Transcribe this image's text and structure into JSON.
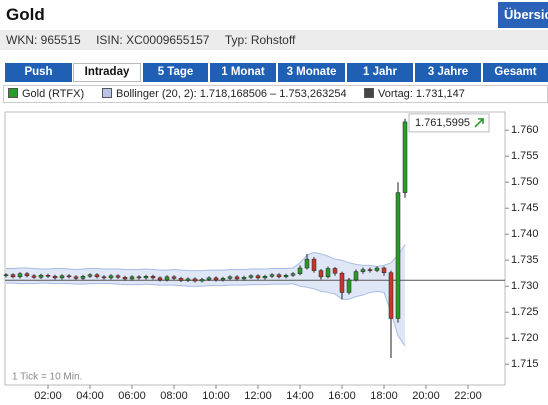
{
  "header": {
    "title": "Gold",
    "button": "Übersicht"
  },
  "info": [
    "WKN: 965515",
    "ISIN: XC0009655157",
    "Typ: Rohstoff"
  ],
  "tabs": [
    "Push",
    "Intraday",
    "5 Tage",
    "1 Monat",
    "3 Monate",
    "1 Jahr",
    "3 Jahre",
    "Gesamt"
  ],
  "active_tab": 1,
  "chart_data": {
    "type": "candlestick",
    "series_name": "Gold (RTFX)",
    "band_name": "Bollinger (20, 2): 1.718,168506 – 1.753,263254",
    "prev_close": {
      "value": 1.731147,
      "label": "Vortag: 1.731,147"
    },
    "last_label": "1.761,5995",
    "footnote": "1 Tick = 10 Min.",
    "up_color": "#2a9a2a",
    "down_color": "#c8352b",
    "band_color": "#dfe7f7",
    "xlim": [
      0,
      1440
    ],
    "xticks": [
      {
        "value": 120,
        "label": "02:00"
      },
      {
        "value": 240,
        "label": "04:00"
      },
      {
        "value": 360,
        "label": "06:00"
      },
      {
        "value": 480,
        "label": "08:00"
      },
      {
        "value": 600,
        "label": "10:00"
      },
      {
        "value": 720,
        "label": "12:00"
      },
      {
        "value": 840,
        "label": "14:00"
      },
      {
        "value": 960,
        "label": "16:00"
      },
      {
        "value": 1080,
        "label": "18:00"
      },
      {
        "value": 1200,
        "label": "20:00"
      },
      {
        "value": 1320,
        "label": "22:00"
      }
    ],
    "ylim": [
      1.711,
      1.7635
    ],
    "yticks": [
      {
        "value": 1.715,
        "label": "1.715"
      },
      {
        "value": 1.72,
        "label": "1.720"
      },
      {
        "value": 1.725,
        "label": "1.725"
      },
      {
        "value": 1.73,
        "label": "1.730"
      },
      {
        "value": 1.735,
        "label": "1.735"
      },
      {
        "value": 1.74,
        "label": "1.740"
      },
      {
        "value": 1.745,
        "label": "1.745"
      },
      {
        "value": 1.75,
        "label": "1.750"
      },
      {
        "value": 1.755,
        "label": "1.755"
      },
      {
        "value": 1.76,
        "label": "1.760"
      }
    ],
    "x": [
      0,
      20,
      40,
      60,
      80,
      100,
      120,
      140,
      160,
      180,
      200,
      220,
      240,
      260,
      280,
      300,
      320,
      340,
      360,
      380,
      400,
      420,
      440,
      460,
      480,
      500,
      520,
      540,
      560,
      580,
      600,
      620,
      640,
      660,
      680,
      700,
      720,
      740,
      760,
      780,
      800,
      820,
      840,
      860,
      880,
      900,
      920,
      940,
      960,
      980,
      1000,
      1020,
      1040,
      1060,
      1080,
      1100,
      1120,
      1140
    ],
    "open": [
      1.732,
      1.7322,
      1.7318,
      1.7324,
      1.732,
      1.7317,
      1.7321,
      1.7319,
      1.7316,
      1.732,
      1.7318,
      1.7315,
      1.7319,
      1.7322,
      1.7318,
      1.7316,
      1.732,
      1.7317,
      1.7314,
      1.7318,
      1.7316,
      1.7319,
      1.7316,
      1.7312,
      1.7318,
      1.7315,
      1.7311,
      1.7314,
      1.731,
      1.7313,
      1.7316,
      1.7312,
      1.7315,
      1.7318,
      1.7314,
      1.7317,
      1.732,
      1.7316,
      1.7319,
      1.7322,
      1.7318,
      1.7321,
      1.7324,
      1.7335,
      1.7352,
      1.733,
      1.7318,
      1.7334,
      1.7325,
      1.7288,
      1.7312,
      1.7328,
      1.7332,
      1.733,
      1.7335,
      1.7326,
      1.7238,
      1.748
    ],
    "high": [
      1.7325,
      1.7325,
      1.7327,
      1.7327,
      1.7323,
      1.7324,
      1.7324,
      1.7322,
      1.7323,
      1.7323,
      1.7321,
      1.7322,
      1.7325,
      1.7325,
      1.7321,
      1.7323,
      1.7323,
      1.732,
      1.7321,
      1.7321,
      1.7322,
      1.7322,
      1.7319,
      1.7321,
      1.7321,
      1.7318,
      1.7317,
      1.7317,
      1.7316,
      1.7319,
      1.7319,
      1.7318,
      1.7321,
      1.7321,
      1.732,
      1.7323,
      1.7323,
      1.7322,
      1.7325,
      1.7325,
      1.7324,
      1.7327,
      1.734,
      1.7362,
      1.7356,
      1.7333,
      1.7338,
      1.7337,
      1.7328,
      1.7316,
      1.7332,
      1.7336,
      1.7336,
      1.7338,
      1.7338,
      1.733,
      1.75,
      1.7622
    ],
    "low": [
      1.7317,
      1.7315,
      1.7315,
      1.7317,
      1.7314,
      1.7314,
      1.7316,
      1.7313,
      1.7313,
      1.7315,
      1.7312,
      1.7312,
      1.7316,
      1.7315,
      1.7313,
      1.7313,
      1.7314,
      1.7311,
      1.7311,
      1.7313,
      1.7313,
      1.7313,
      1.7309,
      1.7309,
      1.7312,
      1.7308,
      1.7308,
      1.7307,
      1.7307,
      1.731,
      1.7309,
      1.7309,
      1.7312,
      1.7311,
      1.7311,
      1.7314,
      1.7313,
      1.7313,
      1.7316,
      1.7315,
      1.7315,
      1.7318,
      1.7321,
      1.7332,
      1.7326,
      1.7313,
      1.7315,
      1.732,
      1.7275,
      1.7284,
      1.7309,
      1.7324,
      1.7326,
      1.7327,
      1.732,
      1.7162,
      1.723,
      1.747
    ],
    "close": [
      1.7322,
      1.7318,
      1.7324,
      1.732,
      1.7317,
      1.7321,
      1.7319,
      1.7316,
      1.732,
      1.7318,
      1.7315,
      1.7319,
      1.7322,
      1.7318,
      1.7316,
      1.732,
      1.7317,
      1.7314,
      1.7318,
      1.7316,
      1.7319,
      1.7316,
      1.7312,
      1.7318,
      1.7315,
      1.7311,
      1.7314,
      1.731,
      1.7313,
      1.7316,
      1.7312,
      1.7315,
      1.7318,
      1.7314,
      1.7317,
      1.732,
      1.7316,
      1.7319,
      1.7322,
      1.7318,
      1.7321,
      1.7324,
      1.7335,
      1.7352,
      1.733,
      1.7318,
      1.7334,
      1.7325,
      1.7288,
      1.7312,
      1.7328,
      1.7332,
      1.733,
      1.7335,
      1.7326,
      1.7238,
      1.748,
      1.7615995
    ],
    "band_upper": [
      1.7334,
      1.7334,
      1.7335,
      1.7335,
      1.7334,
      1.7333,
      1.7333,
      1.7334,
      1.7334,
      1.7333,
      1.7332,
      1.7333,
      1.7334,
      1.7334,
      1.7333,
      1.7333,
      1.7333,
      1.7332,
      1.7332,
      1.7332,
      1.7333,
      1.7332,
      1.7331,
      1.7331,
      1.7332,
      1.7331,
      1.733,
      1.733,
      1.733,
      1.7331,
      1.7331,
      1.7331,
      1.7332,
      1.7332,
      1.7332,
      1.7333,
      1.7333,
      1.7333,
      1.7334,
      1.7334,
      1.7334,
      1.7335,
      1.7345,
      1.736,
      1.7365,
      1.7362,
      1.7358,
      1.7352,
      1.735,
      1.7345,
      1.7342,
      1.734,
      1.734,
      1.7338,
      1.734,
      1.7345,
      1.736,
      1.738
    ],
    "band_lower": [
      1.7306,
      1.7306,
      1.7305,
      1.7305,
      1.7305,
      1.7306,
      1.7306,
      1.7305,
      1.7305,
      1.7305,
      1.7304,
      1.7304,
      1.7305,
      1.7305,
      1.7305,
      1.7305,
      1.7304,
      1.7303,
      1.7303,
      1.7303,
      1.7304,
      1.7303,
      1.7302,
      1.7302,
      1.7302,
      1.7301,
      1.73,
      1.73,
      1.73,
      1.7301,
      1.7301,
      1.7301,
      1.7302,
      1.7302,
      1.7302,
      1.7303,
      1.7303,
      1.7303,
      1.7304,
      1.7304,
      1.7304,
      1.7305,
      1.73,
      1.7298,
      1.7295,
      1.729,
      1.7288,
      1.7285,
      1.7275,
      1.7275,
      1.728,
      1.7283,
      1.7288,
      1.729,
      1.7288,
      1.725,
      1.7205,
      1.7185
    ]
  }
}
